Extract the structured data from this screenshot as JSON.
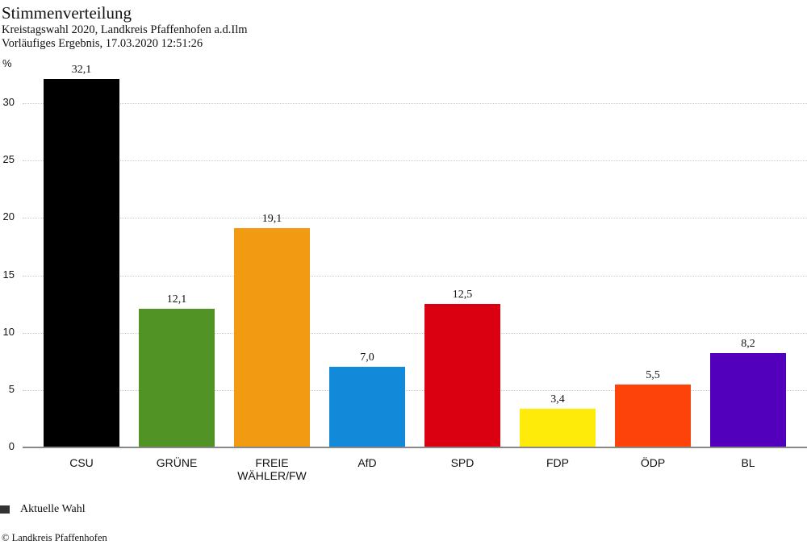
{
  "header": {
    "title": "Stimmenverteilung",
    "subtitle_line1": "Kreistagswahl 2020, Landkreis Pfaffenhofen a.d.Ilm",
    "subtitle_line2": "Vorläufiges Ergebnis, 17.03.2020 12:51:26",
    "unit": "%"
  },
  "legend": {
    "label": "Aktuelle Wahl",
    "color": "#333333"
  },
  "footer": {
    "copyright": "© Landkreis Pfaffenhofen"
  },
  "chart_data": {
    "type": "bar",
    "title": "Stimmenverteilung",
    "subtitle": "Kreistagswahl 2020, Landkreis Pfaffenhofen a.d.Ilm — Vorläufiges Ergebnis, 17.03.2020 12:51:26",
    "xlabel": "",
    "ylabel": "%",
    "ylim": [
      0,
      32.1
    ],
    "yticks": [
      0,
      5,
      10,
      15,
      20,
      25,
      30
    ],
    "grid": true,
    "legend_position": "bottom-left",
    "categories": [
      "CSU",
      "GRÜNE",
      "FREIE WÄHLER/FW",
      "AfD",
      "SPD",
      "FDP",
      "ÖDP",
      "BL"
    ],
    "category_lines": [
      [
        "CSU"
      ],
      [
        "GRÜNE"
      ],
      [
        "FREIE",
        "WÄHLER/FW"
      ],
      [
        "AfD"
      ],
      [
        "SPD"
      ],
      [
        "FDP"
      ],
      [
        "ÖDP"
      ],
      [
        "BL"
      ]
    ],
    "series": [
      {
        "name": "Aktuelle Wahl",
        "values": [
          32.1,
          12.1,
          19.1,
          7.0,
          12.5,
          3.4,
          5.5,
          8.2
        ],
        "labels": [
          "32,1",
          "12,1",
          "19,1",
          "7,0",
          "12,5",
          "3,4",
          "5,5",
          "8,2"
        ],
        "colors": [
          "#000000",
          "#529325",
          "#F39A13",
          "#128AD9",
          "#DA0012",
          "#FFEB09",
          "#FD4309",
          "#5200BC"
        ]
      }
    ]
  }
}
